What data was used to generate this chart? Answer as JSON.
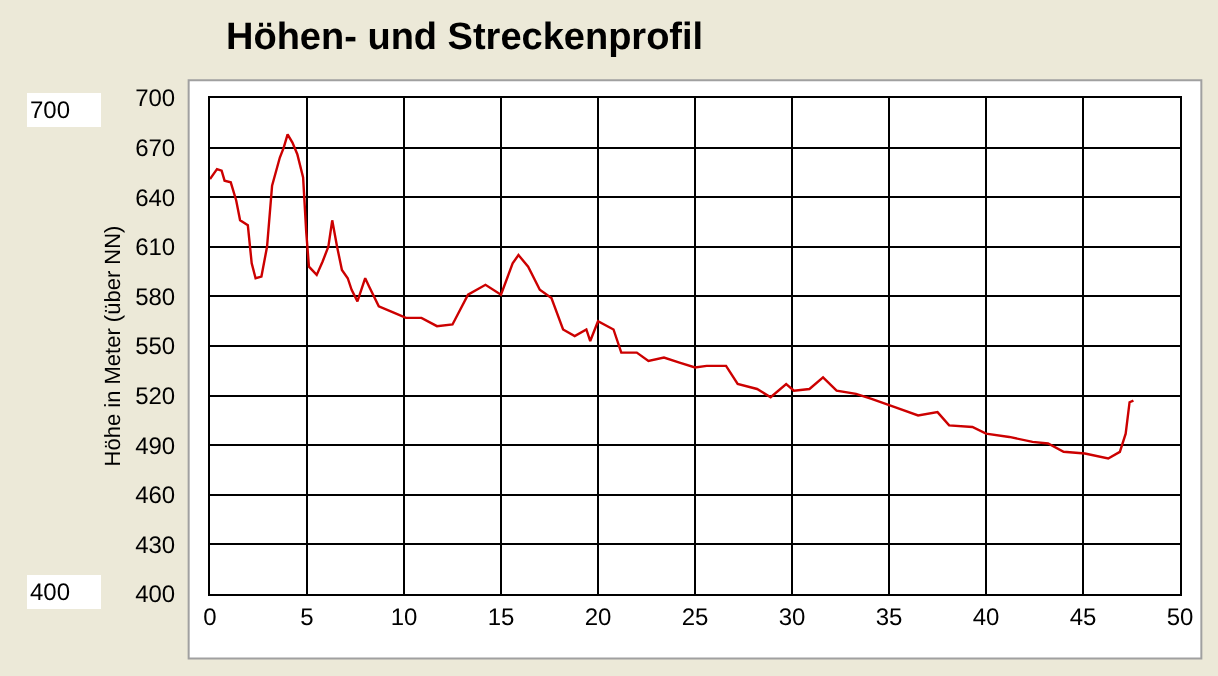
{
  "chart_data": {
    "type": "line",
    "title": "Höhen- und Streckenprofil",
    "ylabel": "Höhe in Meter (über NN)",
    "annotations": [
      "700",
      "400"
    ],
    "x": [
      0,
      0.36,
      0.6,
      0.75,
      1.07,
      1.35,
      1.55,
      1.95,
      2.15,
      2.35,
      2.65,
      2.94,
      3.2,
      3.6,
      3.8,
      4.0,
      4.25,
      4.5,
      4.8,
      4.96,
      5.1,
      5.5,
      5.8,
      6.1,
      6.3,
      6.55,
      6.8,
      7.1,
      7.3,
      7.6,
      8.0,
      8.2,
      8.7,
      9.5,
      10.1,
      10.9,
      11.7,
      12.5,
      13.3,
      14.2,
      15.0,
      15.6,
      15.9,
      16.4,
      17.0,
      17.6,
      18.2,
      18.8,
      19.4,
      19.6,
      20.0,
      20.8,
      21.2,
      22.0,
      22.6,
      23.4,
      24.2,
      25.0,
      25.6,
      26.6,
      27.2,
      28.2,
      28.9,
      29.7,
      30.1,
      30.9,
      31.6,
      32.3,
      33.3,
      34.1,
      35.3,
      36.5,
      37.5,
      38.1,
      39.3,
      40.0,
      41.2,
      42.4,
      43.2,
      44.0,
      45.1,
      46.3,
      46.9,
      47.2,
      47.4,
      47.6
    ],
    "series": [
      {
        "color": "#cc0000",
        "values": [
          651,
          657,
          656,
          650,
          649,
          638,
          626,
          623,
          600,
          591,
          592,
          610,
          647,
          664,
          670,
          678,
          673,
          666,
          652,
          619,
          598,
          593,
          601,
          610,
          626,
          610,
          596,
          591,
          584,
          577,
          591,
          586,
          574,
          570,
          567,
          567,
          562,
          563,
          581,
          587,
          581,
          600,
          605,
          598,
          584,
          579,
          560,
          556,
          560,
          553,
          565,
          560,
          546,
          546,
          541,
          543,
          540,
          537,
          538,
          538,
          527,
          524,
          519,
          527,
          523,
          524,
          531,
          523,
          521,
          518,
          513,
          508,
          510,
          502,
          501,
          497,
          495,
          492,
          491,
          486,
          485,
          482,
          486,
          497,
          516,
          517
        ]
      }
    ],
    "xlim": [
      0,
      50
    ],
    "xticks": [
      0,
      5,
      10,
      15,
      20,
      25,
      30,
      35,
      40,
      45,
      50
    ],
    "ylim": [
      400,
      700
    ],
    "yticks": [
      400,
      430,
      460,
      490,
      520,
      550,
      580,
      610,
      640,
      670,
      700
    ],
    "grid": true,
    "marker": "none",
    "line_style": "solid"
  }
}
